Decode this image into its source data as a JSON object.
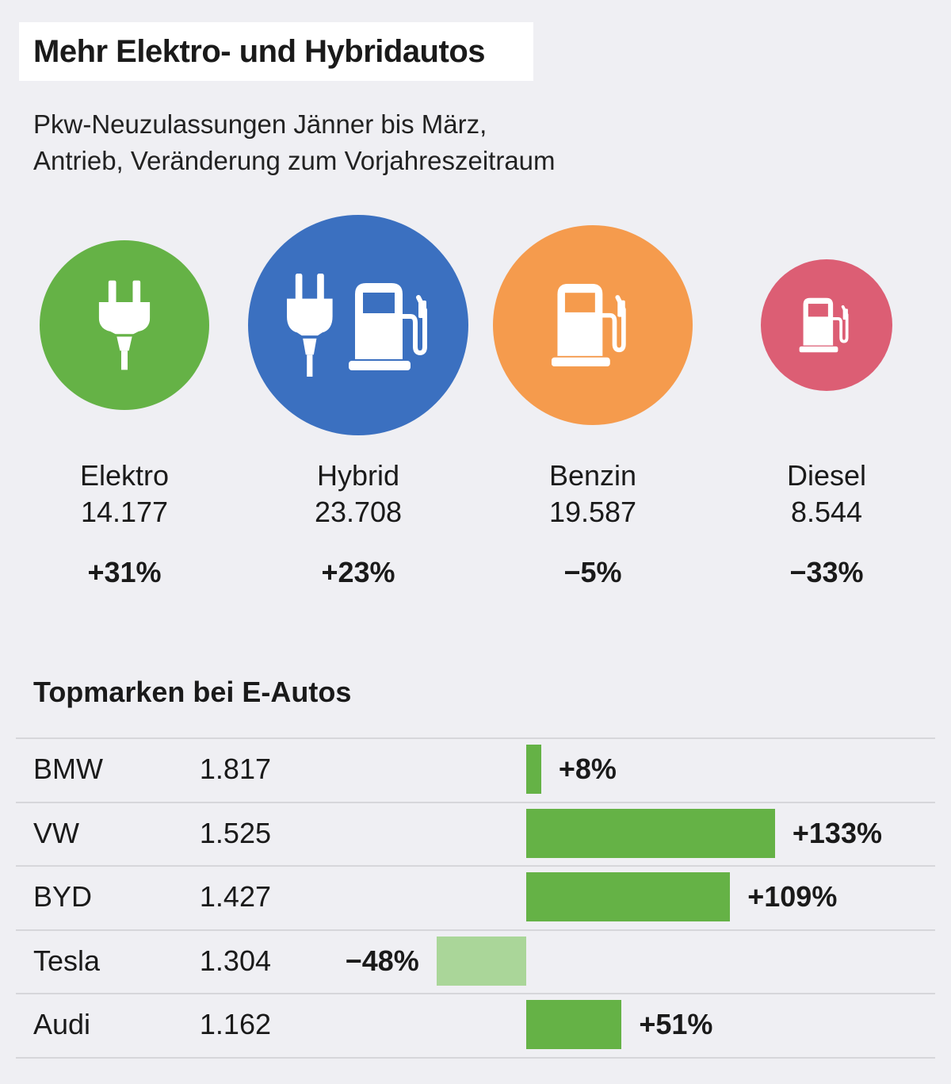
{
  "title": "Mehr Elektro- und Hybridautos",
  "subtitle_line1": "Pkw-Neuzulassungen Jänner bis März,",
  "subtitle_line2": "Antrieb, Veränderung zum Vorjahreszeitraum",
  "colors": {
    "elektro": "#65b246",
    "hybrid": "#3b70c0",
    "benzin": "#f59b4d",
    "diesel": "#dc5e74",
    "bar_positive": "#65b246",
    "bar_negative": "#aad699"
  },
  "categories": [
    {
      "name": "Elektro",
      "value_label": "14.177",
      "change_label": "+31%",
      "icon": "plug-icon"
    },
    {
      "name": "Hybrid",
      "value_label": "23.708",
      "change_label": "+23%",
      "icon": "plug-and-fuel-pump-icon"
    },
    {
      "name": "Benzin",
      "value_label": "19.587",
      "change_label": "−5%",
      "icon": "fuel-pump-icon"
    },
    {
      "name": "Diesel",
      "value_label": "8.544",
      "change_label": "−33%",
      "icon": "fuel-pump-icon"
    }
  ],
  "section_title": "Topmarken bei E-Autos",
  "chart_data": [
    {
      "type": "bubble",
      "categories": [
        "Elektro",
        "Hybrid",
        "Benzin",
        "Diesel"
      ],
      "values": [
        14177,
        23708,
        19587,
        8544
      ],
      "change_percent": [
        31,
        23,
        -5,
        -33
      ]
    },
    {
      "type": "bar",
      "orientation": "horizontal",
      "categories": [
        "BMW",
        "VW",
        "BYD",
        "Tesla",
        "Audi"
      ],
      "counts": [
        1817,
        1525,
        1427,
        1304,
        1162
      ],
      "count_labels": [
        "1.817",
        "1.525",
        "1.427",
        "1.304",
        "1.162"
      ],
      "values": [
        8,
        133,
        109,
        -48,
        51
      ],
      "change_labels": [
        "+8%",
        "+133%",
        "+109%",
        "−48%",
        "+51%"
      ]
    }
  ]
}
